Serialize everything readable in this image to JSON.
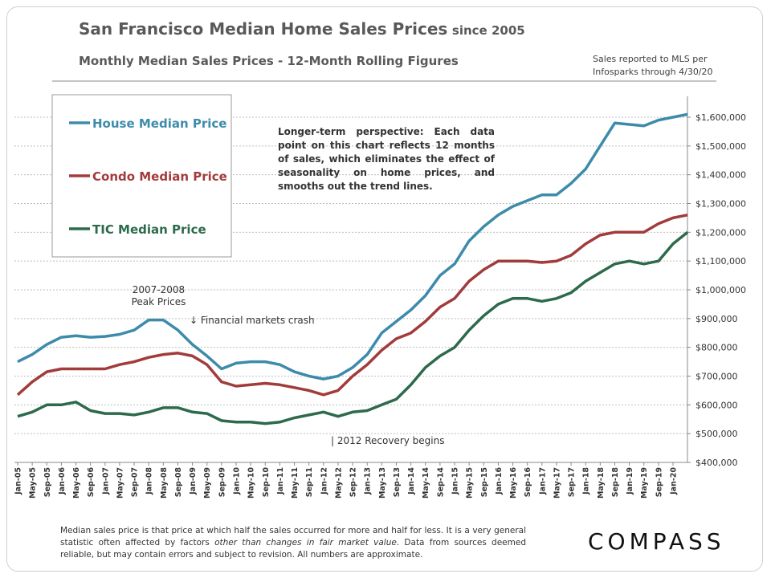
{
  "chart_data": {
    "type": "line",
    "title": "San Francisco Median Home Sales Prices",
    "title_suffix": "since 2005",
    "subtitle": "Monthly Median Sales Prices - 12-Month Rolling Figures",
    "source_note": [
      "Sales reported to MLS per",
      "Infosparks through 4/30/20"
    ],
    "note_box": "Longer-term perspective: Each data point on this chart reflects 12 months of sales, which eliminates the effect of seasonality on home prices, and smooths out the trend lines.",
    "annotations": [
      "2007-2008",
      "Peak Prices",
      "↓ Financial markets crash",
      "| 2012 Recovery begins"
    ],
    "footer": [
      "Median sales price is that price at which half the sales occurred for more and half for less. It is a very general statistic often affected by factors ",
      "other than changes in fair market value",
      ". Data from sources deemed reliable, but may contain errors and subject to revision. All numbers are approximate."
    ],
    "brand": "COMPASS",
    "categories": [
      "Jan-05",
      "May-05",
      "Sep-05",
      "Jan-06",
      "May-06",
      "Sep-06",
      "Jan-07",
      "May-07",
      "Sep-07",
      "Jan-08",
      "May-08",
      "Sep-08",
      "Jan-09",
      "May-09",
      "Sep-09",
      "Jan-10",
      "May-10",
      "Sep-10",
      "Jan-11",
      "May-11",
      "Sep-11",
      "Jan-12",
      "May-12",
      "Sep-12",
      "Jan-13",
      "May-13",
      "Sep-13",
      "Jan-14",
      "May-14",
      "Sep-14",
      "Jan-15",
      "May-15",
      "Sep-15",
      "Jan-16",
      "May-16",
      "Sep-16",
      "Jan-17",
      "May-17",
      "Sep-17",
      "Jan-18",
      "May-18",
      "Sep-18",
      "Jan-19",
      "May-19",
      "Sep-19",
      "Jan-20",
      null
    ],
    "series": [
      {
        "name": "House Median Price",
        "color": "#3d8bab",
        "values": [
          750000,
          775000,
          810000,
          835000,
          840000,
          835000,
          838000,
          845000,
          860000,
          895000,
          895000,
          860000,
          810000,
          770000,
          725000,
          745000,
          750000,
          750000,
          740000,
          715000,
          700000,
          690000,
          700000,
          730000,
          775000,
          850000,
          890000,
          930000,
          980000,
          1050000,
          1090000,
          1170000,
          1220000,
          1260000,
          1290000,
          1310000,
          1330000,
          1330000,
          1370000,
          1420000,
          1500000,
          1580000,
          1575000,
          1570000,
          1590000,
          1600000,
          1610000
        ]
      },
      {
        "name": "Condo Median Price",
        "color": "#a23b3b",
        "values": [
          635000,
          680000,
          715000,
          725000,
          725000,
          725000,
          725000,
          740000,
          750000,
          765000,
          775000,
          780000,
          770000,
          740000,
          680000,
          665000,
          670000,
          675000,
          670000,
          660000,
          650000,
          635000,
          650000,
          700000,
          740000,
          790000,
          830000,
          850000,
          890000,
          940000,
          970000,
          1030000,
          1070000,
          1100000,
          1100000,
          1100000,
          1095000,
          1100000,
          1120000,
          1160000,
          1190000,
          1200000,
          1200000,
          1200000,
          1230000,
          1250000,
          1260000
        ]
      },
      {
        "name": "TIC Median Price",
        "color": "#2d6a4c",
        "values": [
          560000,
          575000,
          600000,
          600000,
          610000,
          580000,
          570000,
          570000,
          565000,
          575000,
          590000,
          590000,
          575000,
          570000,
          545000,
          540000,
          540000,
          535000,
          540000,
          555000,
          565000,
          575000,
          560000,
          575000,
          580000,
          600000,
          620000,
          670000,
          730000,
          770000,
          800000,
          860000,
          910000,
          950000,
          970000,
          970000,
          960000,
          970000,
          990000,
          1030000,
          1060000,
          1090000,
          1100000,
          1090000,
          1100000,
          1160000,
          1200000
        ]
      }
    ],
    "ylim": [
      400000,
      1600000
    ],
    "yticks": [
      {
        "value": 400000,
        "label": "$400,000"
      },
      {
        "value": 500000,
        "label": "$500,000"
      },
      {
        "value": 600000,
        "label": "$600,000"
      },
      {
        "value": 700000,
        "label": "$700,000"
      },
      {
        "value": 800000,
        "label": "$800,000"
      },
      {
        "value": 900000,
        "label": "$900,000"
      },
      {
        "value": 1000000,
        "label": "$1,000,000"
      },
      {
        "value": 1100000,
        "label": "$1,100,000"
      },
      {
        "value": 1200000,
        "label": "$1,200,000"
      },
      {
        "value": 1300000,
        "label": "$1,300,000"
      },
      {
        "value": 1400000,
        "label": "$1,400,000"
      },
      {
        "value": 1500000,
        "label": "$1,500,000"
      },
      {
        "value": 1600000,
        "label": "$1,600,000"
      }
    ],
    "grid": true
  }
}
